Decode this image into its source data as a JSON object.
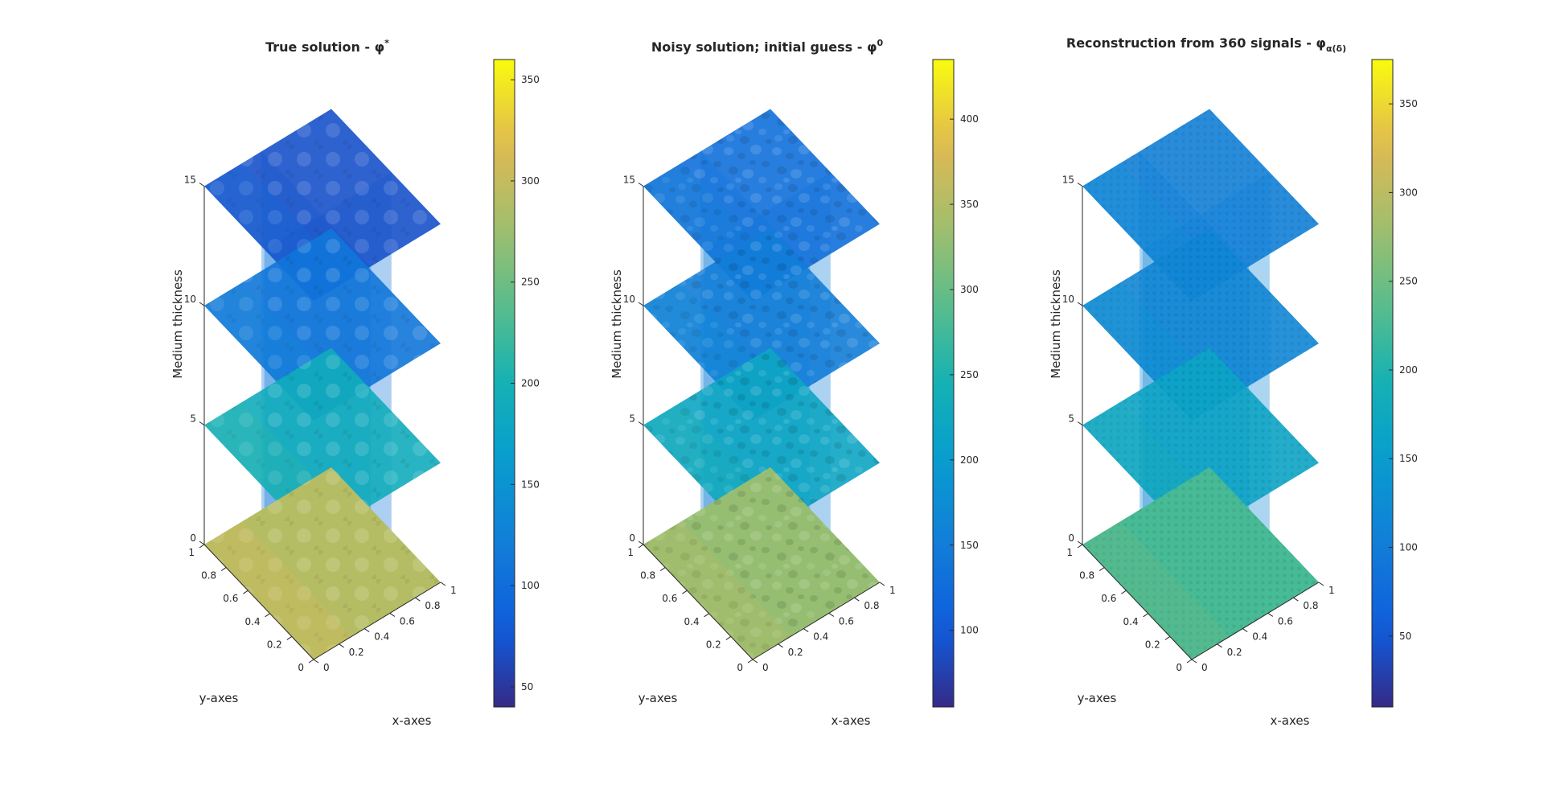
{
  "figure": {
    "type": "3d-slice-plots-with-colorbars",
    "background": "#ffffff"
  },
  "chart_data": [
    {
      "type": "heatmap",
      "title": "True solution - φ",
      "title_superscript": "*",
      "xlabel": "x-axes",
      "ylabel": "y-axes",
      "zlabel": "Medium thickness",
      "x_ticks": [
        "0",
        "0.2",
        "0.4",
        "0.6",
        "0.8",
        "1"
      ],
      "y_ticks": [
        "0",
        "0.2",
        "0.4",
        "0.6",
        "0.8",
        "1"
      ],
      "z_ticks": [
        "0",
        "5",
        "10",
        "15"
      ],
      "xlim": [
        0,
        1
      ],
      "ylim": [
        0,
        1
      ],
      "zlim": [
        0,
        15
      ],
      "slice_heights": [
        0,
        5,
        10,
        15
      ],
      "pattern": "smooth",
      "slice_mean_values": [
        290,
        190,
        110,
        70
      ],
      "colorbar": {
        "min": 40,
        "max": 360,
        "ticks": [
          "50",
          "100",
          "150",
          "200",
          "250",
          "300",
          "350"
        ],
        "tick_values": [
          50,
          100,
          150,
          200,
          250,
          300,
          350
        ]
      }
    },
    {
      "type": "heatmap",
      "title": "Noisy solution; initial guess - φ",
      "title_superscript": "0",
      "xlabel": "x-axes",
      "ylabel": "y-axes",
      "zlabel": "Medium thickness",
      "x_ticks": [
        "0",
        "0.2",
        "0.4",
        "0.6",
        "0.8",
        "1"
      ],
      "y_ticks": [
        "0",
        "0.2",
        "0.4",
        "0.6",
        "0.8",
        "1"
      ],
      "z_ticks": [
        "0",
        "5",
        "10",
        "15"
      ],
      "xlim": [
        0,
        1
      ],
      "ylim": [
        0,
        1
      ],
      "zlim": [
        0,
        15
      ],
      "slice_heights": [
        0,
        5,
        10,
        15
      ],
      "pattern": "noisy",
      "slice_mean_values": [
        330,
        220,
        150,
        130
      ],
      "colorbar": {
        "min": 55,
        "max": 435,
        "ticks": [
          "100",
          "150",
          "200",
          "250",
          "300",
          "350",
          "400"
        ],
        "tick_values": [
          100,
          150,
          200,
          250,
          300,
          350,
          400
        ]
      }
    },
    {
      "type": "heatmap",
      "title": "Reconstruction from 360 signals - φ",
      "title_subscript": "α(δ)",
      "xlabel": "x-axes",
      "ylabel": "y-axes",
      "zlabel": "Medium thickness",
      "x_ticks": [
        "0",
        "0.2",
        "0.4",
        "0.6",
        "0.8",
        "1"
      ],
      "y_ticks": [
        "0",
        "0.2",
        "0.4",
        "0.6",
        "0.8",
        "1"
      ],
      "z_ticks": [
        "0",
        "5",
        "10",
        "15"
      ],
      "xlim": [
        0,
        1
      ],
      "ylim": [
        0,
        1
      ],
      "zlim": [
        0,
        15
      ],
      "slice_heights": [
        0,
        5,
        10,
        15
      ],
      "pattern": "regular",
      "slice_mean_values": [
        225,
        165,
        115,
        105
      ],
      "colorbar": {
        "min": 10,
        "max": 375,
        "ticks": [
          "50",
          "100",
          "150",
          "200",
          "250",
          "300",
          "350"
        ],
        "tick_values": [
          50,
          100,
          150,
          200,
          250,
          300,
          350
        ]
      }
    }
  ]
}
